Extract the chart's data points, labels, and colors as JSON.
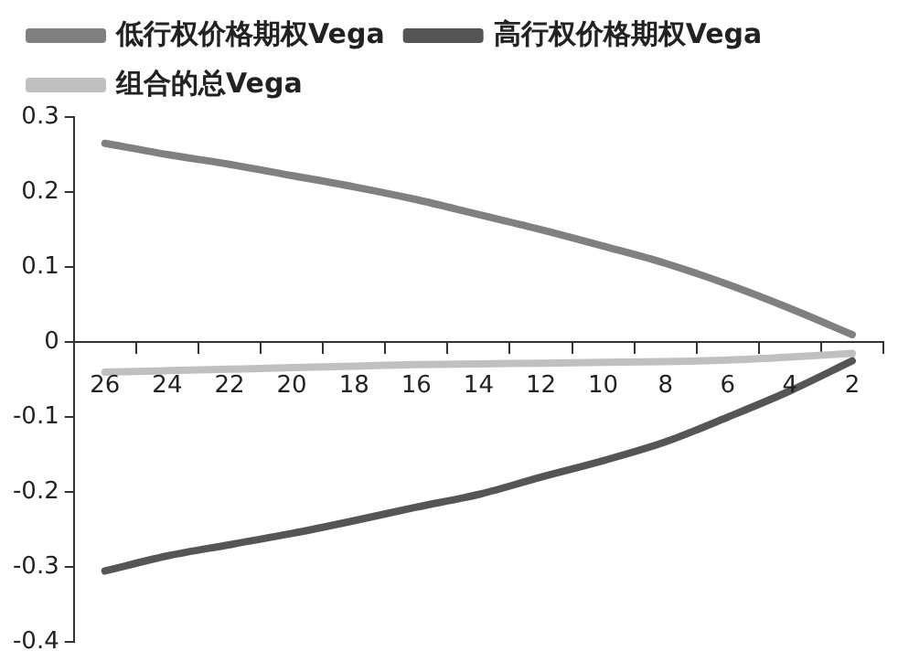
{
  "chart_data": {
    "type": "line",
    "categories": [
      "26",
      "24",
      "22",
      "20",
      "18",
      "16",
      "14",
      "12",
      "10",
      "8",
      "6",
      "4",
      "2"
    ],
    "series": [
      {
        "name": "低行权价格期权Vega",
        "color": "#808080",
        "values": [
          0.265,
          0.25,
          0.237,
          0.222,
          0.207,
          0.19,
          0.17,
          0.15,
          0.128,
          0.105,
          0.077,
          0.045,
          0.01
        ]
      },
      {
        "name": "高行权价格期权Vega",
        "color": "#555555",
        "values": [
          -0.305,
          -0.285,
          -0.27,
          -0.255,
          -0.238,
          -0.22,
          -0.203,
          -0.18,
          -0.158,
          -0.133,
          -0.1,
          -0.065,
          -0.025
        ]
      },
      {
        "name": "组合的总Vega",
        "color": "#c0c0c0",
        "values": [
          -0.04,
          -0.038,
          -0.036,
          -0.034,
          -0.032,
          -0.03,
          -0.029,
          -0.028,
          -0.027,
          -0.026,
          -0.024,
          -0.02,
          -0.015
        ]
      }
    ],
    "ylim": [
      -0.4,
      0.3
    ],
    "yticks": [
      -0.4,
      -0.3,
      -0.2,
      -0.1,
      0,
      0.1,
      0.2,
      0.3
    ],
    "grid": false,
    "legend": "top",
    "marker": "none",
    "line_style": "solid"
  }
}
